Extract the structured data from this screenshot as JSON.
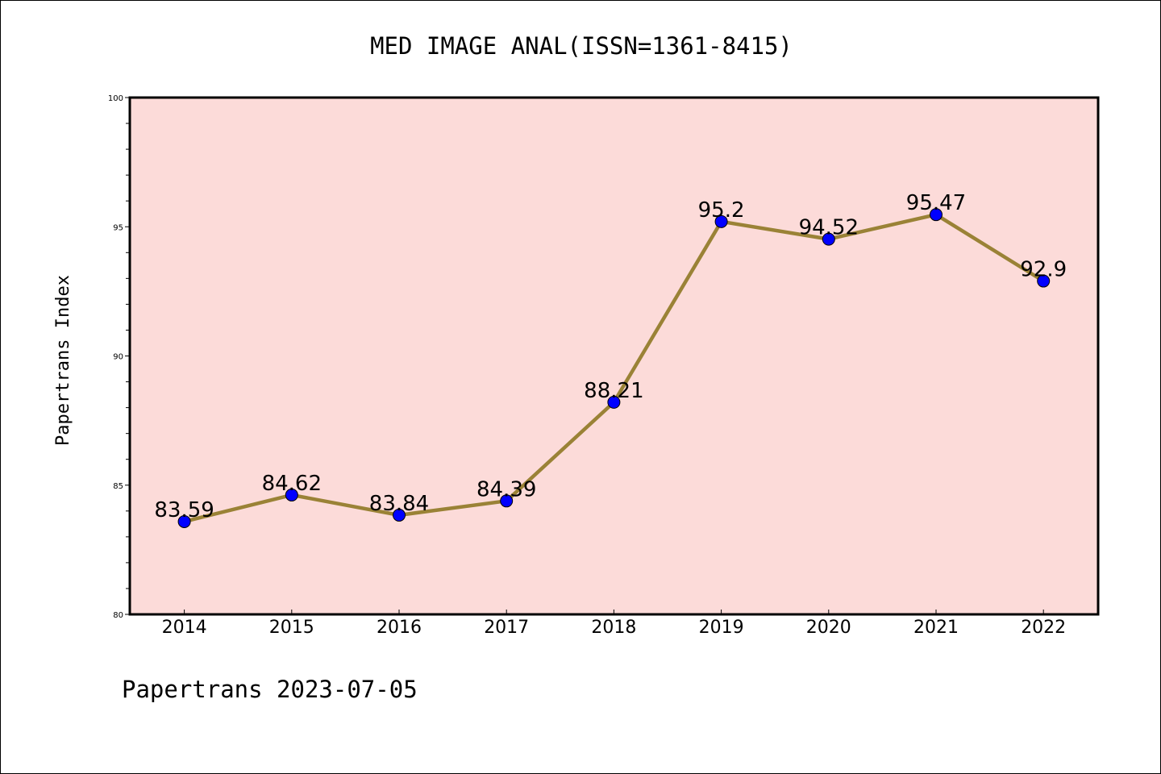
{
  "footer": "Papertrans 2023-07-05",
  "colors": {
    "plot_background": "#fcdbd9",
    "line": "#9a8236",
    "marker": "#0000ff",
    "axes": "#000000"
  },
  "chart_data": {
    "type": "line",
    "title": "MED IMAGE ANAL(ISSN=1361-8415)",
    "xlabel": "",
    "ylabel": "Papertrans Index",
    "categories": [
      "2014",
      "2015",
      "2016",
      "2017",
      "2018",
      "2019",
      "2020",
      "2021",
      "2022"
    ],
    "series": [
      {
        "values": [
          83.59,
          84.62,
          83.84,
          84.39,
          88.21,
          95.2,
          94.52,
          95.47,
          92.9
        ],
        "labels": [
          "83.59",
          "84.62",
          "83.84",
          "84.39",
          "88.21",
          "95.2",
          "94.52",
          "95.47",
          "92.9"
        ]
      }
    ],
    "ylim": [
      80,
      100
    ],
    "yticks": [
      "80",
      "85",
      "90",
      "95",
      "100"
    ],
    "grid": false,
    "legend": "none"
  }
}
